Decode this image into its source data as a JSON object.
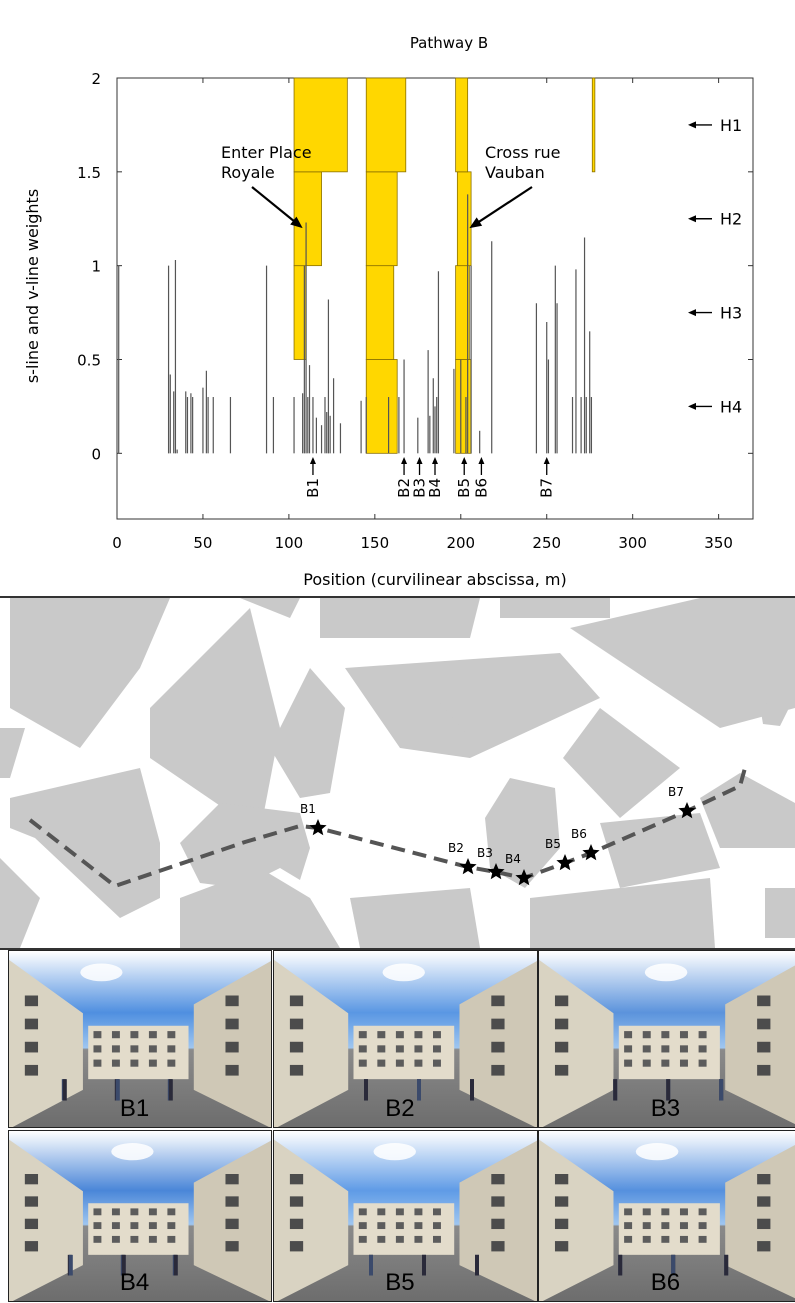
{
  "chart_data": {
    "type": "bar",
    "title": "Pathway B",
    "xlabel": "Position (curvilinear abscissa, m)",
    "ylabel": "s-line and v-line weights",
    "xlim": [
      0,
      370
    ],
    "ylim": [
      -0.35,
      2
    ],
    "xticks": [
      0,
      50,
      100,
      150,
      200,
      250,
      300,
      350
    ],
    "yticks": [
      0,
      0.5,
      1,
      1.5,
      2
    ],
    "grid": false,
    "vlines": [
      {
        "x": 1,
        "y": 1.0
      },
      {
        "x": 30,
        "y": 1.0
      },
      {
        "x": 31,
        "y": 0.42
      },
      {
        "x": 33,
        "y": 0.33
      },
      {
        "x": 34,
        "y": 1.03
      },
      {
        "x": 35,
        "y": 0.02
      },
      {
        "x": 40,
        "y": 0.33
      },
      {
        "x": 41,
        "y": 0.3
      },
      {
        "x": 43,
        "y": 0.32
      },
      {
        "x": 44,
        "y": 0.3
      },
      {
        "x": 50,
        "y": 0.35
      },
      {
        "x": 52,
        "y": 0.44
      },
      {
        "x": 53,
        "y": 0.3
      },
      {
        "x": 56,
        "y": 0.3
      },
      {
        "x": 66,
        "y": 0.3
      },
      {
        "x": 87,
        "y": 1.0
      },
      {
        "x": 91,
        "y": 0.3
      },
      {
        "x": 103,
        "y": 0.3
      },
      {
        "x": 108,
        "y": 0.32
      },
      {
        "x": 109,
        "y": 1.0
      },
      {
        "x": 110,
        "y": 1.23
      },
      {
        "x": 111,
        "y": 0.3
      },
      {
        "x": 112,
        "y": 0.47
      },
      {
        "x": 114,
        "y": 0.3
      },
      {
        "x": 116,
        "y": 0.19
      },
      {
        "x": 119,
        "y": 0.15
      },
      {
        "x": 121,
        "y": 0.3
      },
      {
        "x": 122,
        "y": 0.22
      },
      {
        "x": 123,
        "y": 0.82
      },
      {
        "x": 124,
        "y": 0.2
      },
      {
        "x": 126,
        "y": 0.4
      },
      {
        "x": 130,
        "y": 0.16
      },
      {
        "x": 142,
        "y": 0.28
      },
      {
        "x": 145,
        "y": 0.3
      },
      {
        "x": 158,
        "y": 0.3
      },
      {
        "x": 164,
        "y": 0.3
      },
      {
        "x": 167,
        "y": 0.5
      },
      {
        "x": 175,
        "y": 0.19
      },
      {
        "x": 181,
        "y": 0.55
      },
      {
        "x": 182,
        "y": 0.2
      },
      {
        "x": 184,
        "y": 0.4
      },
      {
        "x": 185,
        "y": 0.25
      },
      {
        "x": 186,
        "y": 0.3
      },
      {
        "x": 187,
        "y": 0.97
      },
      {
        "x": 196,
        "y": 0.45
      },
      {
        "x": 200,
        "y": 0.5
      },
      {
        "x": 203,
        "y": 0.3
      },
      {
        "x": 204,
        "y": 1.38
      },
      {
        "x": 206,
        "y": 1.0
      },
      {
        "x": 211,
        "y": 0.12
      },
      {
        "x": 218,
        "y": 1.13
      },
      {
        "x": 244,
        "y": 0.8
      },
      {
        "x": 250,
        "y": 0.7
      },
      {
        "x": 251,
        "y": 0.5
      },
      {
        "x": 255,
        "y": 1.0
      },
      {
        "x": 256,
        "y": 0.8
      },
      {
        "x": 265,
        "y": 0.3
      },
      {
        "x": 267,
        "y": 0.98
      },
      {
        "x": 270,
        "y": 0.3
      },
      {
        "x": 272,
        "y": 1.15
      },
      {
        "x": 273,
        "y": 0.3
      },
      {
        "x": 275,
        "y": 0.65
      },
      {
        "x": 276,
        "y": 0.3
      }
    ],
    "slines": [
      {
        "x0": 134,
        "x1": 164,
        "levels": [
          {
            "y0": 0,
            "y1": 0.5,
            "x0": 145,
            "x1": 163
          },
          {
            "y0": 0.5,
            "y1": 1.0,
            "x0": 145,
            "x1": 161
          },
          {
            "y0": 1.0,
            "y1": 1.5,
            "x0": 145,
            "x1": 163
          },
          {
            "y0": 1.5,
            "y1": 2.0,
            "x0": 145,
            "x1": 168
          }
        ]
      },
      {
        "levels": [
          {
            "y0": 0.5,
            "y1": 1.0,
            "x0": 103,
            "x1": 110
          },
          {
            "y0": 1.0,
            "y1": 1.5,
            "x0": 103,
            "x1": 119
          },
          {
            "y0": 1.5,
            "y1": 2.0,
            "x0": 103,
            "x1": 134
          }
        ]
      },
      {
        "levels": [
          {
            "y0": 0,
            "y1": 0.5,
            "x0": 197,
            "x1": 206
          },
          {
            "y0": 0.5,
            "y1": 1.0,
            "x0": 197,
            "x1": 205
          },
          {
            "y0": 1.0,
            "y1": 1.5,
            "x0": 198,
            "x1": 206
          },
          {
            "y0": 1.5,
            "y1": 2.0,
            "x0": 197,
            "x1": 204
          }
        ]
      },
      {
        "levels": [
          {
            "y0": 1.5,
            "y1": 2.0,
            "x0": 276.5,
            "x1": 278
          }
        ]
      }
    ],
    "annotations": [
      {
        "text": "Enter Place\nRoyale",
        "target_x": 108,
        "target_y": 1.2
      },
      {
        "text": "Cross rue\nVauban",
        "target_x": 205,
        "target_y": 1.2
      }
    ],
    "level_labels": [
      {
        "text": "H1",
        "y": 1.75
      },
      {
        "text": "H2",
        "y": 1.25
      },
      {
        "text": "H3",
        "y": 0.75
      },
      {
        "text": "H4",
        "y": 0.25
      }
    ],
    "point_markers": [
      {
        "label": "B1",
        "x": 114
      },
      {
        "label": "B2",
        "x": 167
      },
      {
        "label": "B3",
        "x": 176
      },
      {
        "label": "B4",
        "x": 185
      },
      {
        "label": "B5",
        "x": 202
      },
      {
        "label": "B6",
        "x": 212
      },
      {
        "label": "B7",
        "x": 250
      }
    ]
  },
  "map": {
    "background": "#ffffff",
    "block_color": "#c9c9c9",
    "route_color": "#555555",
    "stops": [
      {
        "label": "B1"
      },
      {
        "label": "B2"
      },
      {
        "label": "B3"
      },
      {
        "label": "B4"
      },
      {
        "label": "B5"
      },
      {
        "label": "B6"
      },
      {
        "label": "B7"
      }
    ]
  },
  "photos": [
    {
      "label": "B1"
    },
    {
      "label": "B2"
    },
    {
      "label": "B3"
    },
    {
      "label": "B4"
    },
    {
      "label": "B5"
    },
    {
      "label": "B6"
    }
  ],
  "colors": {
    "sline_fill": "#ffd700",
    "sline_edge": "#8a7000",
    "vline": "#555555"
  }
}
